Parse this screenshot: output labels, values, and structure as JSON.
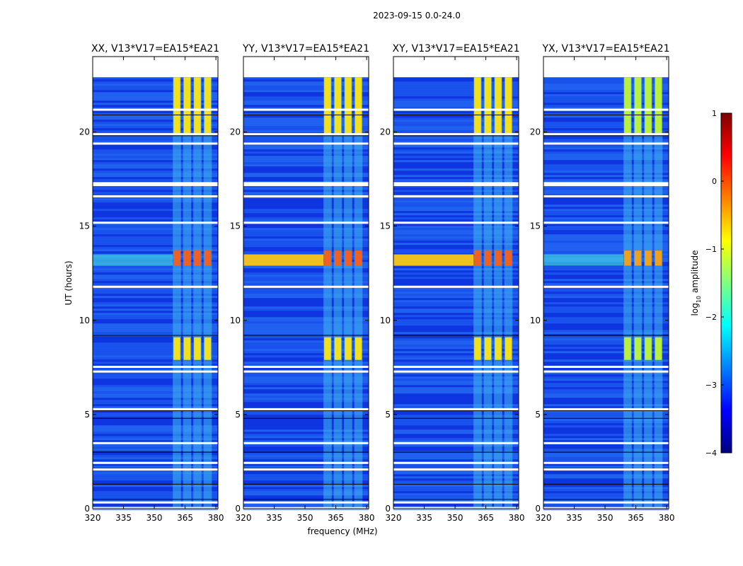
{
  "chart_data": {
    "type": "heatmap",
    "suptitle": "2023-09-15 0.0-24.0",
    "xlabel": "frequency (MHz)",
    "ylabel": "UT (hours)",
    "xlim": [
      320,
      381
    ],
    "ylim": [
      0,
      24
    ],
    "xticks": [
      320,
      335,
      350,
      365,
      380
    ],
    "yticks": [
      0,
      5,
      10,
      15,
      20
    ],
    "data_extent_hours": [
      0,
      22.9
    ],
    "panels": [
      {
        "title": "XX, V13*V17=EA15*EA21",
        "variant": "xx"
      },
      {
        "title": "YY, V13*V17=EA15*EA21",
        "variant": "yy"
      },
      {
        "title": "XY, V13*V17=EA15*EA21",
        "variant": "xy"
      },
      {
        "title": "YX, V13*V17=EA15*EA21",
        "variant": "yx"
      }
    ],
    "rfi_channels_mhz": [
      [
        359,
        363
      ],
      [
        364,
        368
      ],
      [
        369,
        373
      ],
      [
        374,
        378
      ]
    ],
    "rfi_hours": [
      [
        7.9,
        9.1
      ],
      [
        12.9,
        13.7
      ],
      [
        19.9,
        22.9
      ]
    ],
    "gap_hours": [
      0.05,
      0.35,
      2.1,
      2.45,
      3.5,
      5.3,
      7.3,
      7.55,
      11.8,
      15.2,
      16.6,
      17.2,
      17.3,
      19.4,
      19.9,
      21.2
    ],
    "colorbar": {
      "label": "log",
      "label_sub": "10",
      "label_rest": " amplitude",
      "range": [
        -4,
        1
      ],
      "ticks": [
        1,
        0,
        -1,
        -2,
        -3,
        -4
      ],
      "colors": [
        "#00007f",
        "#0000ff",
        "#0080ff",
        "#00ffff",
        "#80ff80",
        "#ffff00",
        "#ff8000",
        "#ff0000",
        "#7f0000"
      ]
    }
  }
}
